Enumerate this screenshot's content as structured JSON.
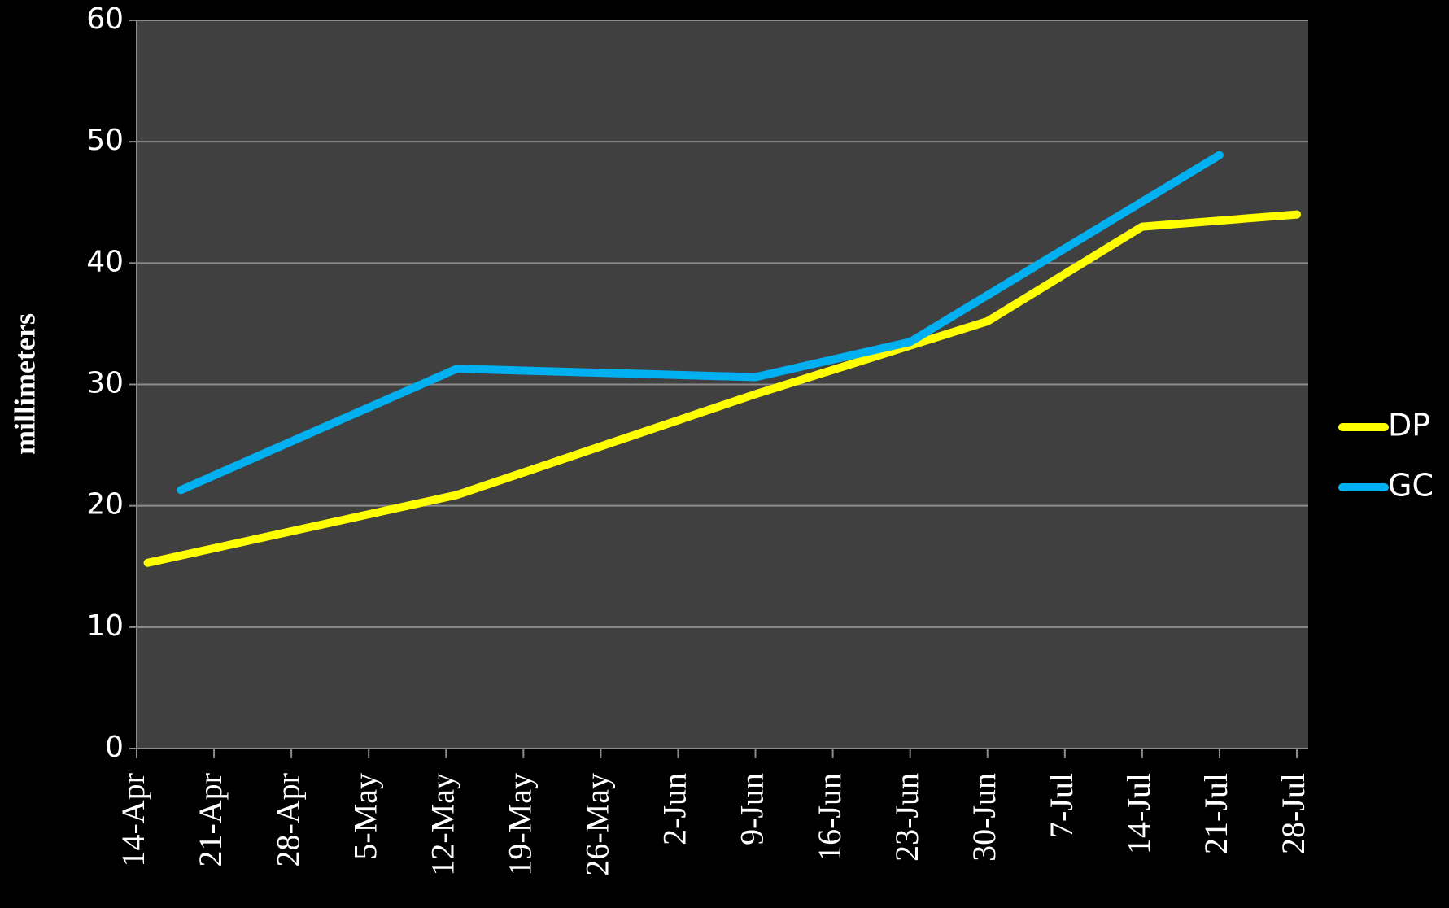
{
  "chart_data": {
    "type": "line",
    "y_label": "millimeters",
    "xticks": [
      "14-Apr",
      "21-Apr",
      "28-Apr",
      "5-May",
      "12-May",
      "19-May",
      "26-May",
      "2-Jun",
      "9-Jun",
      "16-Jun",
      "23-Jun",
      "30-Jun",
      "7-Jul",
      "14-Jul",
      "21-Jul",
      "28-Jul"
    ],
    "xlim": [
      "14-Apr",
      "28-Jul"
    ],
    "ylim": [
      0,
      60
    ],
    "yticks": [
      0,
      10,
      20,
      30,
      40,
      50,
      60
    ],
    "grid": true,
    "legend": "right",
    "series": [
      {
        "name": "DP",
        "color": "#ffff00",
        "x": [
          "15-Apr",
          "13-May",
          "9-Jun",
          "23-Jun",
          "30-Jun",
          "14-Jul",
          "28-Jul"
        ],
        "values": [
          15.3,
          20.9,
          29.2,
          33.2,
          35.2,
          43,
          44
        ]
      },
      {
        "name": "GC",
        "color": "#00b0f0",
        "x": [
          "18-Apr",
          "13-May",
          "9-Jun",
          "23-Jun",
          "21-Jul"
        ],
        "values": [
          21.3,
          31.3,
          30.6,
          33.5,
          48.9
        ]
      }
    ]
  }
}
